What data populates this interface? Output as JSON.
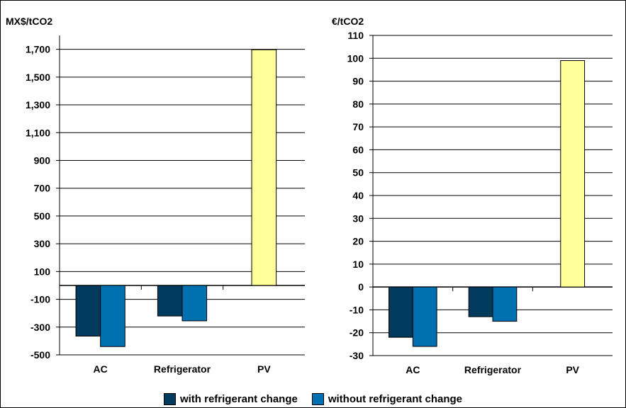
{
  "colors": {
    "with": "#003a5c",
    "without": "#0070b0",
    "pv": "#ffff99",
    "grid": "#000000"
  },
  "legend": {
    "with_label": "with refrigerant change",
    "without_label": "without refrigerant change"
  },
  "chart_data": [
    {
      "type": "bar",
      "unit_label": "MX$/tCO2",
      "categories": [
        "AC",
        "Refrigerator",
        "PV"
      ],
      "series": [
        {
          "name": "with refrigerant change",
          "values": [
            -365,
            -220,
            null
          ]
        },
        {
          "name": "without refrigerant change",
          "values": [
            -440,
            -255,
            null
          ]
        },
        {
          "name": "",
          "values": [
            null,
            null,
            1697
          ]
        }
      ],
      "ylim": [
        -500,
        1800
      ],
      "yticks": [
        -500,
        -300,
        -100,
        100,
        300,
        500,
        700,
        900,
        1100,
        1300,
        1500,
        1700
      ],
      "ytick_labels": [
        "-500",
        "-300",
        "-100",
        "100",
        "300",
        "500",
        "700",
        "900",
        "1,100",
        "1,300",
        "1,500",
        "1,700"
      ],
      "grid": true
    },
    {
      "type": "bar",
      "unit_label": "€/tCO2",
      "categories": [
        "AC",
        "Refrigerator",
        "PV"
      ],
      "series": [
        {
          "name": "with refrigerant change",
          "values": [
            -22,
            -13,
            null
          ]
        },
        {
          "name": "without refrigerant change",
          "values": [
            -26,
            -15,
            null
          ]
        },
        {
          "name": "",
          "values": [
            null,
            null,
            99
          ]
        }
      ],
      "ylim": [
        -30,
        110
      ],
      "yticks": [
        -30,
        -20,
        -10,
        0,
        10,
        20,
        30,
        40,
        50,
        60,
        70,
        80,
        90,
        100,
        110
      ],
      "ytick_labels": [
        "-30",
        "-20",
        "-10",
        "0",
        "10",
        "20",
        "30",
        "40",
        "50",
        "60",
        "70",
        "80",
        "90",
        "100",
        "110"
      ],
      "grid": true
    }
  ]
}
